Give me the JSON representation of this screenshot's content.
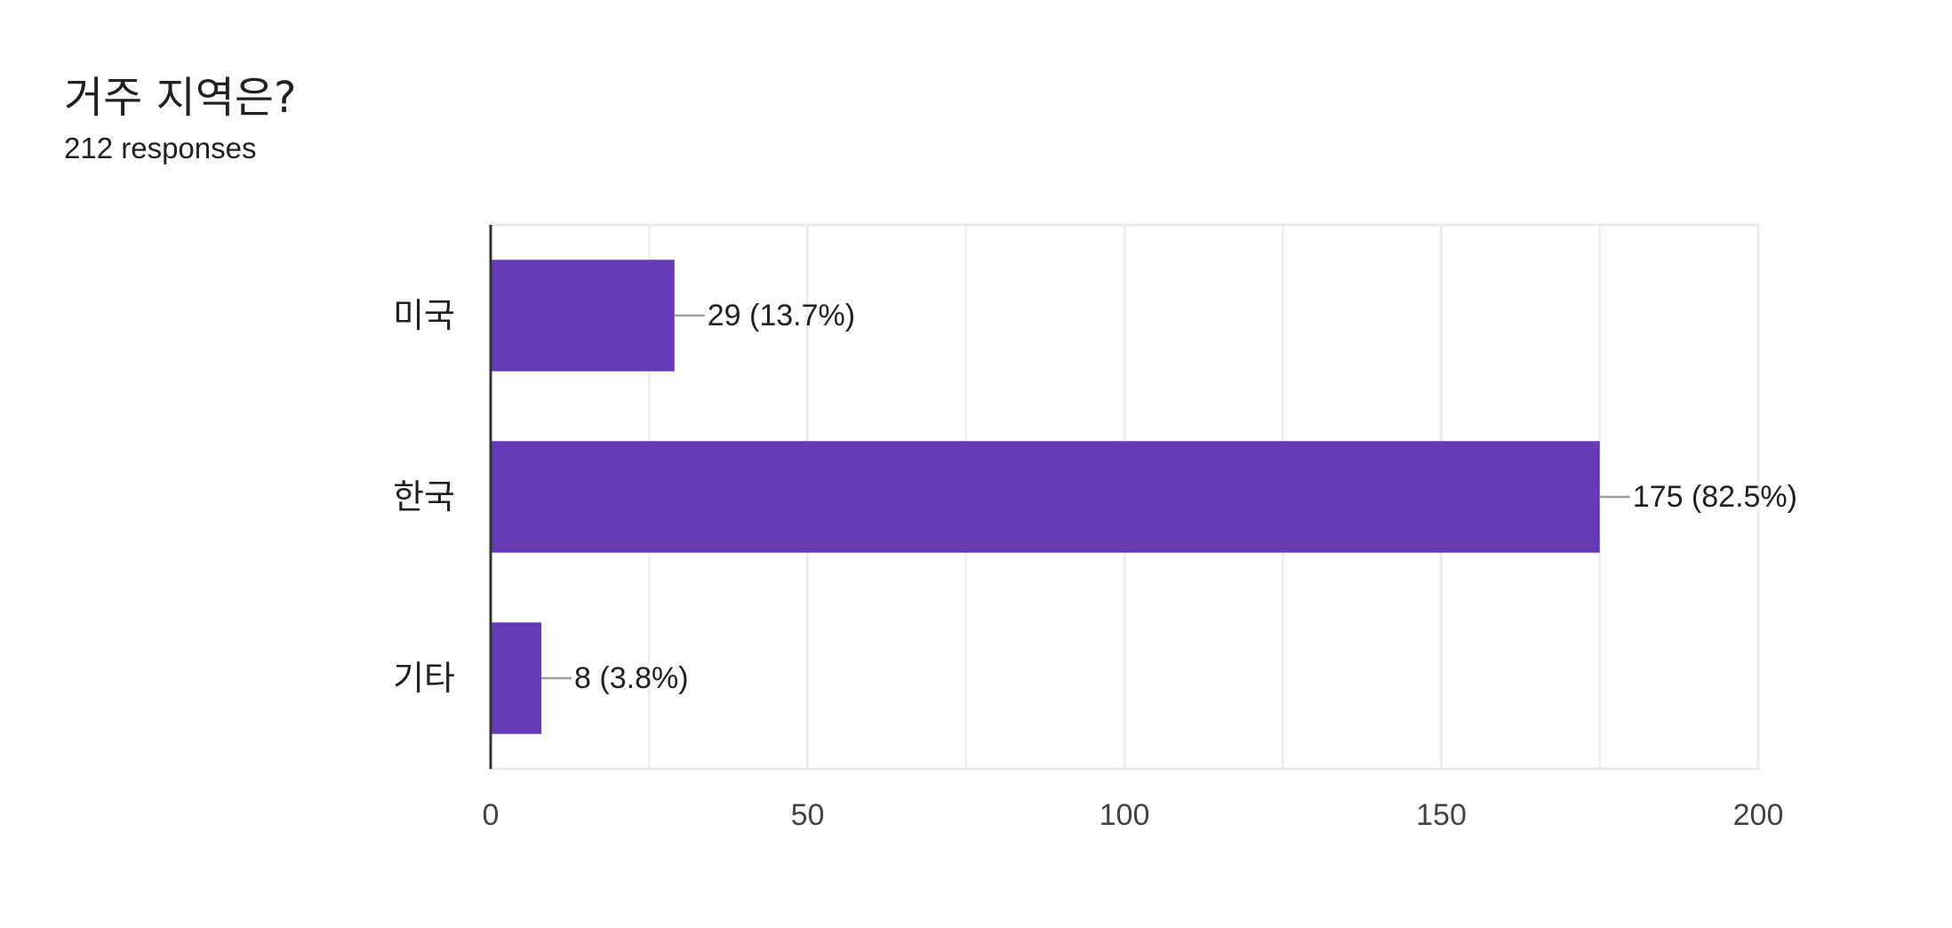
{
  "question": {
    "title": "거주 지역은?",
    "responses": "212 responses"
  },
  "colors": {
    "bar": "#673ab7",
    "grid": "#ebebeb",
    "axis": "#333333",
    "leader": "#9e9e9e"
  },
  "chart_data": {
    "type": "bar",
    "orientation": "horizontal",
    "categories": [
      "미국",
      "한국",
      "기타"
    ],
    "values": [
      29,
      175,
      8
    ],
    "data_labels": [
      "29 (13.7%)",
      "175 (82.5%)",
      "8 (3.8%)"
    ],
    "xlim": [
      0,
      200
    ],
    "ticks": [
      0,
      50,
      100,
      150,
      200
    ],
    "grid": true
  }
}
